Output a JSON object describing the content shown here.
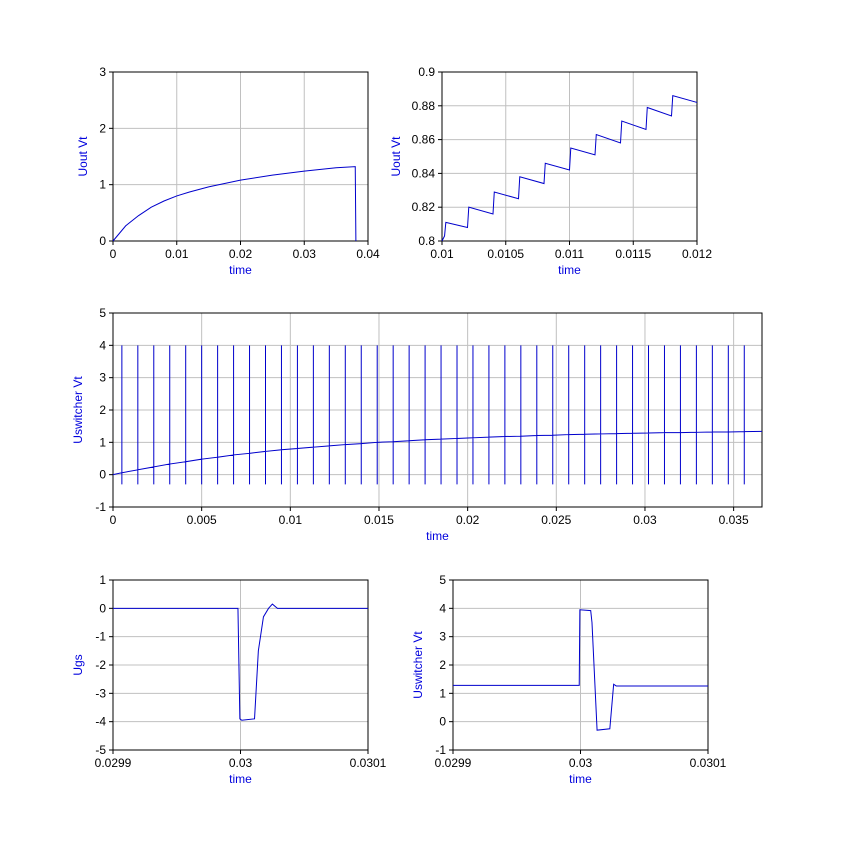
{
  "chart_data": [
    {
      "type": "line",
      "xlabel": "time",
      "ylabel": "Uout Vt",
      "color": "#0000cc",
      "grid": true,
      "xlim": [
        0,
        0.04
      ],
      "xticks": [
        0,
        0.01,
        0.02,
        0.03,
        0.04
      ],
      "ylim": [
        0,
        3
      ],
      "yticks": [
        0,
        1,
        2,
        3
      ],
      "x": [
        0,
        0.002,
        0.004,
        0.006,
        0.008,
        0.01,
        0.012,
        0.015,
        0.02,
        0.025,
        0.03,
        0.035,
        0.038,
        0.0381
      ],
      "values": [
        0,
        0.27,
        0.45,
        0.6,
        0.71,
        0.8,
        0.87,
        0.96,
        1.08,
        1.17,
        1.24,
        1.3,
        1.32,
        0
      ]
    },
    {
      "type": "line",
      "xlabel": "time",
      "ylabel": "Uout Vt",
      "color": "#0000cc",
      "grid": true,
      "xlim": [
        0.01,
        0.012
      ],
      "xticks": [
        0.01,
        0.0105,
        0.011,
        0.0115,
        0.012
      ],
      "ylim": [
        0.8,
        0.9
      ],
      "yticks": [
        0.8,
        0.82,
        0.84,
        0.86,
        0.88,
        0.9
      ],
      "x": [
        0.01,
        0.01002,
        0.01003,
        0.0102,
        0.01021,
        0.0104,
        0.01041,
        0.0106,
        0.01061,
        0.0108,
        0.01081,
        0.011,
        0.01101,
        0.0112,
        0.01121,
        0.0114,
        0.01141,
        0.0116,
        0.01161,
        0.0118,
        0.01181,
        0.012
      ],
      "values": [
        0.8,
        0.803,
        0.811,
        0.808,
        0.82,
        0.816,
        0.829,
        0.825,
        0.838,
        0.834,
        0.846,
        0.842,
        0.855,
        0.851,
        0.863,
        0.858,
        0.871,
        0.866,
        0.879,
        0.874,
        0.886,
        0.882
      ]
    },
    {
      "type": "line",
      "xlabel": "time",
      "ylabel": "Uswitcher Vt",
      "color": "#0000cc",
      "grid": true,
      "xlim": [
        0,
        0.0366
      ],
      "xticks": [
        0,
        0.005,
        0.01,
        0.015,
        0.02,
        0.025,
        0.03,
        0.035
      ],
      "ylim": [
        -1,
        5
      ],
      "yticks": [
        -1,
        0,
        1,
        2,
        3,
        4,
        5
      ],
      "x": [
        0,
        0.0005,
        0.0005,
        0.0005,
        0.0005,
        0.0014,
        0.0014,
        0.0014,
        0.0014,
        0.0023,
        0.0023,
        0.0023,
        0.0023,
        0.0032,
        0.0032,
        0.0032,
        0.0032,
        0.0041,
        0.0041,
        0.0041,
        0.0041,
        0.005,
        0.005,
        0.005,
        0.005,
        0.0059,
        0.0059,
        0.0059,
        0.0059,
        0.0068,
        0.0068,
        0.0068,
        0.0068,
        0.0077,
        0.0077,
        0.0077,
        0.0077,
        0.0086,
        0.0086,
        0.0086,
        0.0086,
        0.0095,
        0.0095,
        0.0095,
        0.0095,
        0.0104,
        0.0104,
        0.0104,
        0.0104,
        0.0113,
        0.0113,
        0.0113,
        0.0113,
        0.0122,
        0.0122,
        0.0122,
        0.0122,
        0.0131,
        0.0131,
        0.0131,
        0.0131,
        0.014,
        0.014,
        0.014,
        0.014,
        0.0149,
        0.0149,
        0.0149,
        0.0149,
        0.0158,
        0.0158,
        0.0158,
        0.0158,
        0.0167,
        0.0167,
        0.0167,
        0.0167,
        0.0176,
        0.0176,
        0.0176,
        0.0176,
        0.0185,
        0.0185,
        0.0185,
        0.0185,
        0.0194,
        0.0194,
        0.0194,
        0.0194,
        0.0203,
        0.0203,
        0.0203,
        0.0203,
        0.0212,
        0.0212,
        0.0212,
        0.0212,
        0.0221,
        0.0221,
        0.0221,
        0.0221,
        0.023,
        0.023,
        0.023,
        0.023,
        0.0239,
        0.0239,
        0.0239,
        0.0239,
        0.0248,
        0.0248,
        0.0248,
        0.0248,
        0.0257,
        0.0257,
        0.0257,
        0.0257,
        0.0266,
        0.0266,
        0.0266,
        0.0266,
        0.0275,
        0.0275,
        0.0275,
        0.0275,
        0.0284,
        0.0284,
        0.0284,
        0.0284,
        0.0293,
        0.0293,
        0.0293,
        0.0293,
        0.0302,
        0.0302,
        0.0302,
        0.0302,
        0.0311,
        0.0311,
        0.0311,
        0.0311,
        0.032,
        0.032,
        0.032,
        0.032,
        0.0329,
        0.0329,
        0.0329,
        0.0329,
        0.0338,
        0.0338,
        0.0338,
        0.0338,
        0.0347,
        0.0347,
        0.0347,
        0.0347,
        0.0356,
        0.0356,
        0.0356,
        0.0356,
        0.0366
      ],
      "values": [
        0,
        0.06,
        4,
        -0.3,
        0.06,
        0.15,
        4,
        -0.3,
        0.15,
        0.24,
        4,
        -0.3,
        0.24,
        0.33,
        4,
        -0.3,
        0.33,
        0.4,
        4,
        -0.3,
        0.4,
        0.48,
        4,
        -0.3,
        0.48,
        0.54,
        4,
        -0.3,
        0.54,
        0.61,
        4,
        -0.3,
        0.61,
        0.66,
        4,
        -0.3,
        0.66,
        0.72,
        4,
        -0.3,
        0.72,
        0.77,
        4,
        -0.3,
        0.77,
        0.81,
        4,
        -0.3,
        0.81,
        0.85,
        4,
        -0.3,
        0.85,
        0.89,
        4,
        -0.3,
        0.89,
        0.93,
        4,
        -0.3,
        0.93,
        0.96,
        4,
        -0.3,
        0.96,
        1.0,
        4,
        -0.3,
        1.0,
        1.02,
        4,
        -0.3,
        1.02,
        1.05,
        4,
        -0.3,
        1.05,
        1.08,
        4,
        -0.3,
        1.08,
        1.1,
        4,
        -0.3,
        1.1,
        1.12,
        4,
        -0.3,
        1.12,
        1.14,
        4,
        -0.3,
        1.14,
        1.16,
        4,
        -0.3,
        1.16,
        1.18,
        4,
        -0.3,
        1.18,
        1.19,
        4,
        -0.3,
        1.19,
        1.21,
        4,
        -0.3,
        1.21,
        1.22,
        4,
        -0.3,
        1.22,
        1.24,
        4,
        -0.3,
        1.24,
        1.25,
        4,
        -0.3,
        1.25,
        1.26,
        4,
        -0.3,
        1.26,
        1.27,
        4,
        -0.3,
        1.27,
        1.28,
        4,
        -0.3,
        1.28,
        1.29,
        4,
        -0.3,
        1.29,
        1.3,
        4,
        -0.3,
        1.3,
        1.3,
        4,
        -0.3,
        1.3,
        1.31,
        4,
        -0.3,
        1.31,
        1.32,
        4,
        -0.3,
        1.32,
        1.32,
        4,
        -0.3,
        1.32,
        1.33,
        4,
        -0.3,
        1.33,
        1.34
      ]
    },
    {
      "type": "line",
      "xlabel": "time",
      "ylabel": "Ugs",
      "color": "#0000cc",
      "grid": true,
      "xlim": [
        0.0299,
        0.0301
      ],
      "xticks": [
        0.0299,
        0.03,
        0.0301
      ],
      "ylim": [
        -5,
        1
      ],
      "yticks": [
        -5,
        -4,
        -3,
        -2,
        -1,
        0,
        1
      ],
      "x": [
        0.0299,
        0.029998,
        0.0299995,
        0.030001,
        0.030011,
        0.030014,
        0.030018,
        0.030022,
        0.030025,
        0.030029,
        0.0301
      ],
      "values": [
        0,
        0,
        -3.9,
        -3.95,
        -3.9,
        -1.5,
        -0.3,
        0,
        0.15,
        0,
        0
      ]
    },
    {
      "type": "line",
      "xlabel": "time",
      "ylabel": "Uswitcher Vt",
      "color": "#0000cc",
      "grid": true,
      "xlim": [
        0.0299,
        0.0301
      ],
      "xticks": [
        0.0299,
        0.03,
        0.0301
      ],
      "ylim": [
        -1,
        5
      ],
      "yticks": [
        -1,
        0,
        1,
        2,
        3,
        4,
        5
      ],
      "x": [
        0.0299,
        0.029999,
        0.0299995,
        0.030008,
        0.030009,
        0.030013,
        0.030023,
        0.030026,
        0.030028,
        0.0301
      ],
      "values": [
        1.28,
        1.28,
        3.95,
        3.92,
        3.5,
        -0.3,
        -0.25,
        1.32,
        1.26,
        1.26
      ]
    }
  ]
}
